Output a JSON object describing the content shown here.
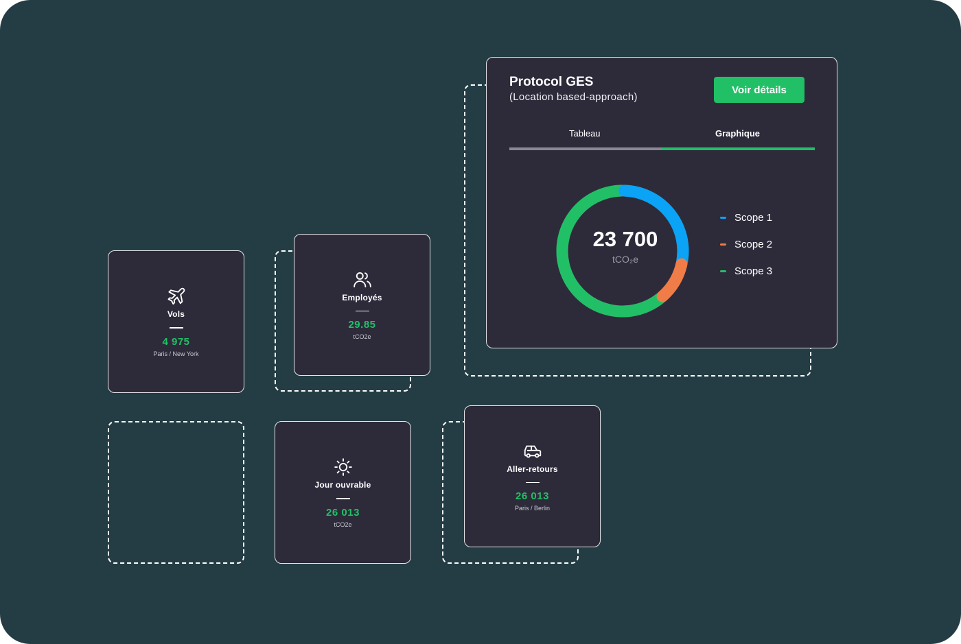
{
  "tiles": {
    "vols": {
      "label": "Vols",
      "value": "4 975",
      "sub": "Paris / New York",
      "icon": "airplane-icon"
    },
    "employes": {
      "label": "Employés",
      "value": "29.85",
      "sub": "tCO2e",
      "icon": "users-icon"
    },
    "jour": {
      "label": "Jour ouvrable",
      "value": "26 013",
      "sub": "tCO2e",
      "icon": "sun-icon"
    },
    "aller": {
      "label": "Aller-retours",
      "value": "26 013",
      "sub": "Paris / Berlin",
      "icon": "car-icon"
    }
  },
  "ges": {
    "title": "Protocol GES",
    "subtitle": "(Location based-approach)",
    "button": "Voir détails",
    "tabs": [
      {
        "label": "Tableau",
        "active": false
      },
      {
        "label": "Graphique",
        "active": true
      }
    ],
    "total": "23 700",
    "unit": "tCO₂e"
  },
  "colors": {
    "background": "#243d44",
    "card": "#2d2b3a",
    "accent": "#22c066",
    "scope1": "#0aa3f5",
    "scope2": "#f07d47",
    "scope3": "#22c066"
  },
  "chart_data": {
    "type": "pie",
    "categories": [
      "Scope 1",
      "Scope 2",
      "Scope 3"
    ],
    "values": [
      28,
      11,
      61
    ]
  }
}
